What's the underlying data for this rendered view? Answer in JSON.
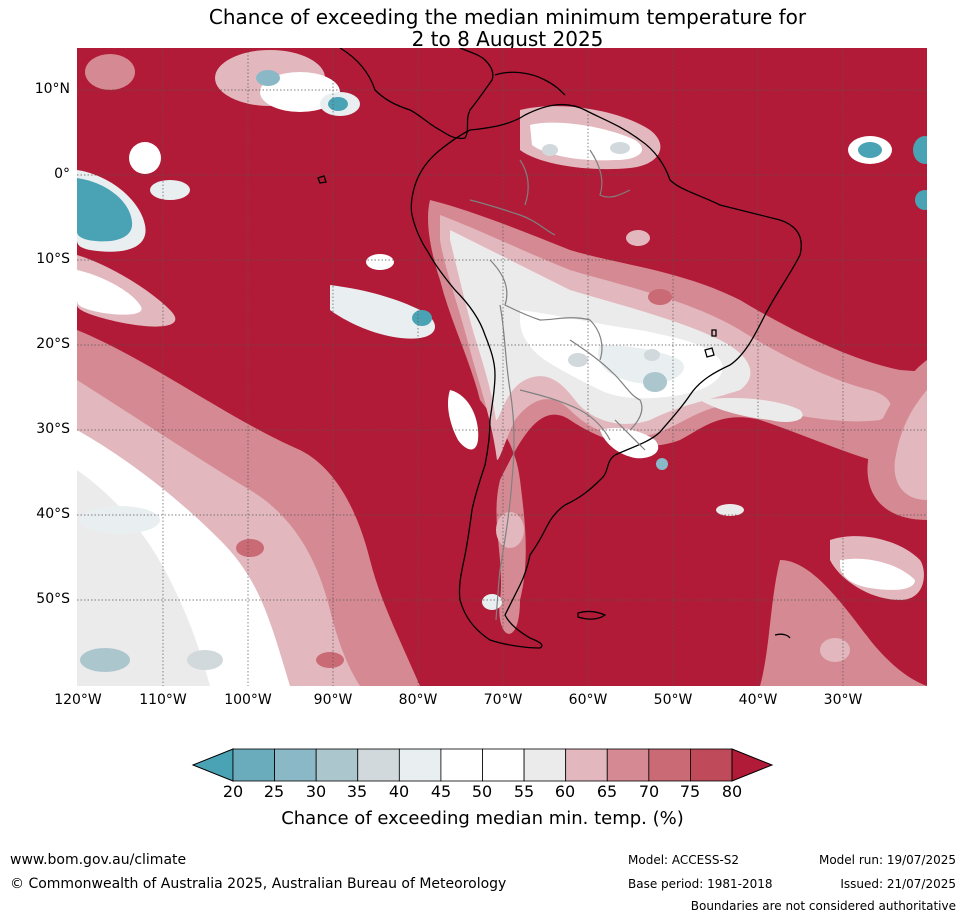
{
  "title": {
    "line1": "Chance of exceeding the median minimum temperature for",
    "line2": "2 to 8 August 2025"
  },
  "map": {
    "lat_labels": [
      "10°N",
      "0°",
      "10°S",
      "20°S",
      "30°S",
      "40°S",
      "50°S"
    ],
    "lon_labels": [
      "120°W",
      "110°W",
      "100°W",
      "90°W",
      "80°W",
      "70°W",
      "60°W",
      "50°W",
      "40°W",
      "30°W"
    ],
    "colors": {
      "land_border": "#000000",
      "country_border": "#808080",
      "gridline": "#555555"
    }
  },
  "colorbar": {
    "title": "Chance of exceeding median min. temp. (%)",
    "ticks": [
      "20",
      "25",
      "30",
      "35",
      "40",
      "45",
      "50",
      "55",
      "60",
      "65",
      "70",
      "75",
      "80"
    ],
    "below_color": "#4aa3b5",
    "above_color": "#b21b37",
    "bins": [
      "#6aacbb",
      "#8ab8c6",
      "#acc6cd",
      "#d1d9dc",
      "#e9eff1",
      "#ffffff",
      "#ffffff",
      "#ecebec",
      "#e2b8be",
      "#d58a93",
      "#c96a75",
      "#bf4a59"
    ]
  },
  "footer": {
    "url": "www.bom.gov.au/climate",
    "copyright": "© Commonwealth of Australia 2025, Australian Bureau of Meteorology",
    "model": "Model: ACCESS-S2",
    "base_period": "Base period: 1981-2018",
    "model_run": "Model run: 19/07/2025",
    "issued": "Issued: 21/07/2025",
    "boundaries": "Boundaries are not considered authoritative"
  }
}
